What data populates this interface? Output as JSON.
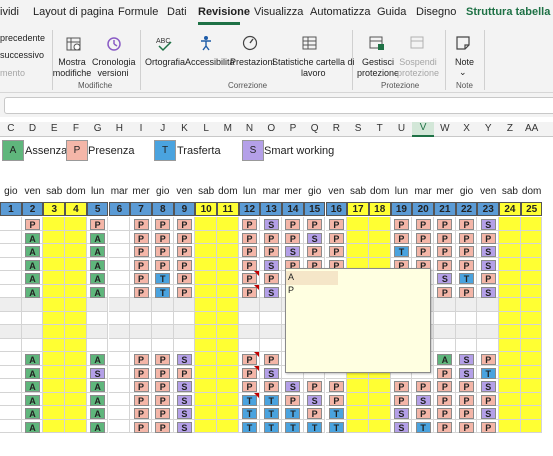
{
  "tabs": [
    {
      "label": "ividi"
    },
    {
      "label": "Layout di pagina"
    },
    {
      "label": "Formule"
    },
    {
      "label": "Dati"
    },
    {
      "label": "Revisione"
    },
    {
      "label": "Visualizza"
    },
    {
      "label": "Automatizza"
    },
    {
      "label": "Guida"
    },
    {
      "label": "Disegno"
    },
    {
      "label": "Struttura tabella"
    }
  ],
  "active_tab": "Revisione",
  "ribbon": {
    "prev_label": "precedente",
    "next_label": "successivo",
    "partial_label": "mento",
    "show_comments_label": "Mostra\nmodifiche",
    "history_label": "Cronologia\nversioni",
    "group_modifiche": "Modifiche",
    "spelling_label": "Ortografia",
    "accessibility_label": "Accessibilità",
    "performance_label": "Prestazioni",
    "stats_label": "Statistiche cartella di\nlavoro",
    "group_correzione": "Correzione",
    "protect_label": "Gestisci\nprotezione",
    "suspend_label": "Sospendi\nprotezione",
    "group_protezione": "Protezione",
    "notes_label": "Note",
    "group_note": "Note"
  },
  "columns": [
    "C",
    "D",
    "E",
    "F",
    "G",
    "H",
    "I",
    "J",
    "K",
    "L",
    "M",
    "N",
    "O",
    "P",
    "Q",
    "R",
    "S",
    "T",
    "U",
    "V",
    "W",
    "X",
    "Y",
    "Z",
    "AA"
  ],
  "selected_column": "V",
  "legend": [
    {
      "code": "A",
      "label": "Assenza"
    },
    {
      "code": "P",
      "label": "Presenza"
    },
    {
      "code": "T",
      "label": "Trasferta"
    },
    {
      "code": "S",
      "label": "Smart working"
    }
  ],
  "colors": {
    "A": "#5fb67c",
    "P": "#f4b6a8",
    "T": "#4aa3df",
    "S": "#b4a0e8",
    "weekend": "#ffff33",
    "daynum_weekend": "#ffff33",
    "daynum_weekday": "#5b9bd5",
    "header_green": "#1e7145"
  },
  "days": [
    "gio",
    "ven",
    "sab",
    "dom",
    "lun",
    "mar",
    "mer",
    "gio",
    "ven",
    "sab",
    "dom",
    "lun",
    "mar",
    "mer",
    "gio",
    "ven",
    "sab",
    "dom",
    "lun",
    "mar",
    "mer",
    "gio",
    "ven",
    "sab",
    "dom"
  ],
  "day_numbers": [
    "1",
    "2",
    "3",
    "4",
    "5",
    "6",
    "7",
    "8",
    "9",
    "10",
    "11",
    "12",
    "13",
    "14",
    "15",
    "16",
    "17",
    "18",
    "19",
    "20",
    "21",
    "22",
    "23",
    "24",
    "25"
  ],
  "grid_rows": [
    [
      "",
      "P",
      "",
      "",
      "P",
      "",
      "P",
      "P",
      "P",
      "",
      "",
      "P",
      "S",
      "P",
      "P",
      "P",
      "",
      "",
      "P",
      "P",
      "P",
      "P",
      "S",
      "",
      ""
    ],
    [
      "",
      "A",
      "",
      "",
      "A",
      "",
      "P",
      "P",
      "P",
      "",
      "",
      "P",
      "P",
      "P",
      "S",
      "P",
      "",
      "",
      "P",
      "P",
      "P",
      "P",
      "P",
      "",
      ""
    ],
    [
      "",
      "A",
      "",
      "",
      "A",
      "",
      "P",
      "P",
      "P",
      "",
      "",
      "P",
      "P",
      "S",
      "P",
      "P",
      "",
      "",
      "T",
      "P",
      "P",
      "P",
      "S",
      "",
      ""
    ],
    [
      "",
      "A",
      "",
      "",
      "A",
      "",
      "P",
      "P",
      "P",
      "",
      "",
      "P",
      "S",
      "P",
      "P",
      "P",
      "",
      "",
      "P",
      "P",
      "P",
      "P",
      "S",
      "",
      ""
    ],
    [
      "",
      "A",
      "",
      "",
      "A",
      "",
      "P",
      "T",
      "P",
      "",
      "",
      "P",
      "P",
      "",
      "",
      "",
      "",
      "",
      "",
      "P",
      "S",
      "T",
      "P",
      "",
      ""
    ],
    [
      "",
      "A",
      "",
      "",
      "A",
      "",
      "P",
      "T",
      "P",
      "",
      "",
      "P",
      "S",
      "",
      "",
      "",
      "",
      "",
      "",
      "T",
      "P",
      "P",
      "S",
      "",
      ""
    ],
    [
      "",
      "",
      "",
      "",
      "",
      "",
      "",
      "",
      "",
      "",
      "",
      "",
      "",
      "",
      "",
      "",
      "",
      "",
      "",
      "",
      "",
      "",
      "",
      "",
      ""
    ],
    [
      "",
      "",
      "",
      "",
      "",
      "",
      "",
      "",
      "",
      "",
      "",
      "",
      "",
      "",
      "",
      "",
      "",
      "",
      "",
      "",
      "",
      "",
      "",
      "",
      ""
    ],
    [
      "",
      "",
      "",
      "",
      "",
      "",
      "",
      "",
      "",
      "",
      "",
      "",
      "",
      "",
      "",
      "",
      "",
      "",
      "",
      "",
      "",
      "",
      "",
      "",
      ""
    ],
    [
      "",
      "",
      "",
      "",
      "",
      "",
      "",
      "",
      "",
      "",
      "",
      "",
      "",
      "",
      "",
      "",
      "",
      "",
      "",
      "",
      "",
      "",
      "",
      "",
      ""
    ],
    [
      "",
      "A",
      "",
      "",
      "A",
      "",
      "P",
      "P",
      "S",
      "",
      "",
      "P",
      "P",
      "",
      "",
      "",
      "",
      "",
      "",
      "",
      "A",
      "S",
      "P",
      "",
      ""
    ],
    [
      "",
      "A",
      "",
      "",
      "S",
      "",
      "P",
      "P",
      "P",
      "",
      "",
      "P",
      "S",
      "",
      "",
      "",
      "",
      "",
      "",
      "",
      "P",
      "S",
      "T",
      "",
      ""
    ],
    [
      "",
      "A",
      "",
      "",
      "A",
      "",
      "P",
      "P",
      "S",
      "",
      "",
      "P",
      "P",
      "S",
      "P",
      "P",
      "",
      "",
      "P",
      "P",
      "P",
      "P",
      "S",
      "",
      ""
    ],
    [
      "",
      "A",
      "",
      "",
      "A",
      "",
      "P",
      "P",
      "S",
      "",
      "",
      "T",
      "T",
      "P",
      "S",
      "P",
      "",
      "",
      "P",
      "S",
      "P",
      "P",
      "P",
      "",
      ""
    ],
    [
      "",
      "A",
      "",
      "",
      "A",
      "",
      "P",
      "P",
      "S",
      "",
      "",
      "T",
      "T",
      "T",
      "P",
      "T",
      "",
      "",
      "S",
      "P",
      "P",
      "P",
      "S",
      "",
      ""
    ],
    [
      "",
      "A",
      "",
      "",
      "A",
      "",
      "P",
      "P",
      "S",
      "",
      "",
      "T",
      "T",
      "T",
      "T",
      "T",
      "",
      "",
      "S",
      "T",
      "P",
      "P",
      "P",
      "",
      ""
    ]
  ],
  "comment": {
    "author": "A",
    "text": "P"
  }
}
